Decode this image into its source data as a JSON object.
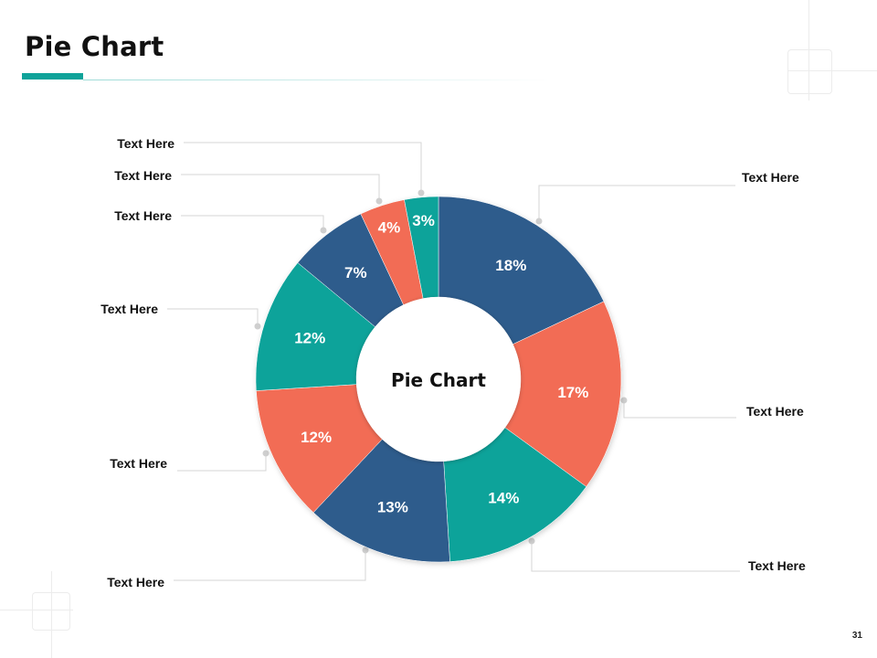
{
  "slide": {
    "title": "Pie Chart",
    "page_number": "31"
  },
  "colors": {
    "accent": "#0fa39a",
    "navy": "#2f5b8c",
    "coral": "#f26c55",
    "teal": "#0fa39a",
    "leader_line": "#d5d5d5",
    "leader_dot": "#cfcfcf"
  },
  "chart_data": {
    "type": "pie",
    "center_label": "Pie Chart",
    "slices": [
      {
        "value": 18,
        "label": "18%",
        "callout": "Text Here",
        "color": "#2f5b8c"
      },
      {
        "value": 17,
        "label": "17%",
        "callout": "Text Here",
        "color": "#f26c55"
      },
      {
        "value": 14,
        "label": "14%",
        "callout": "Text Here",
        "color": "#0fa39a"
      },
      {
        "value": 13,
        "label": "13%",
        "callout": "Text Here",
        "color": "#2f5b8c"
      },
      {
        "value": 12,
        "label": "12%",
        "callout": "Text Here",
        "color": "#f26c55"
      },
      {
        "value": 12,
        "label": "12%",
        "callout": "Text Here",
        "color": "#0fa39a"
      },
      {
        "value": 7,
        "label": "7%",
        "callout": "Text Here",
        "color": "#2f5b8c"
      },
      {
        "value": 4,
        "label": "4%",
        "callout": "Text Here",
        "color": "#f26c55"
      },
      {
        "value": 3,
        "label": "3%",
        "callout": "Text Here",
        "color": "#0fa39a"
      }
    ]
  }
}
